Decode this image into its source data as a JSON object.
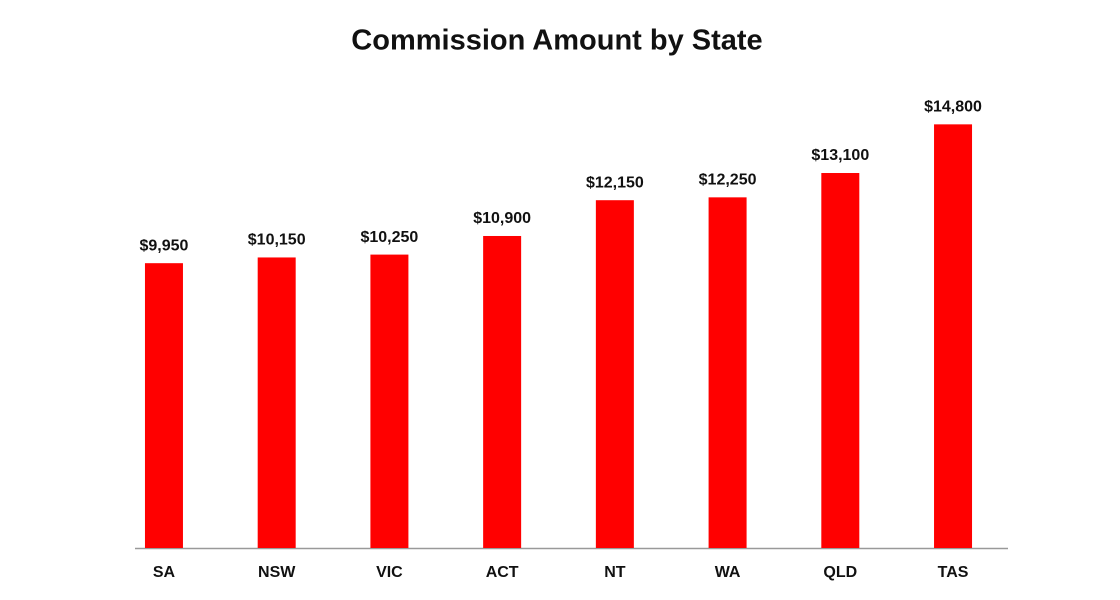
{
  "chart_data": {
    "type": "bar",
    "title": "Commission Amount by State",
    "categories": [
      "SA",
      "NSW",
      "VIC",
      "ACT",
      "NT",
      "WA",
      "QLD",
      "TAS"
    ],
    "values": [
      9950,
      10150,
      10250,
      10900,
      12150,
      12250,
      13100,
      14800
    ],
    "value_labels": [
      "$9,950",
      "$10,150",
      "$10,250",
      "$10,900",
      "$12,150",
      "$12,250",
      "$13,100",
      "$14,800"
    ],
    "color": "#ff0000",
    "ylim": [
      0,
      16000
    ]
  }
}
